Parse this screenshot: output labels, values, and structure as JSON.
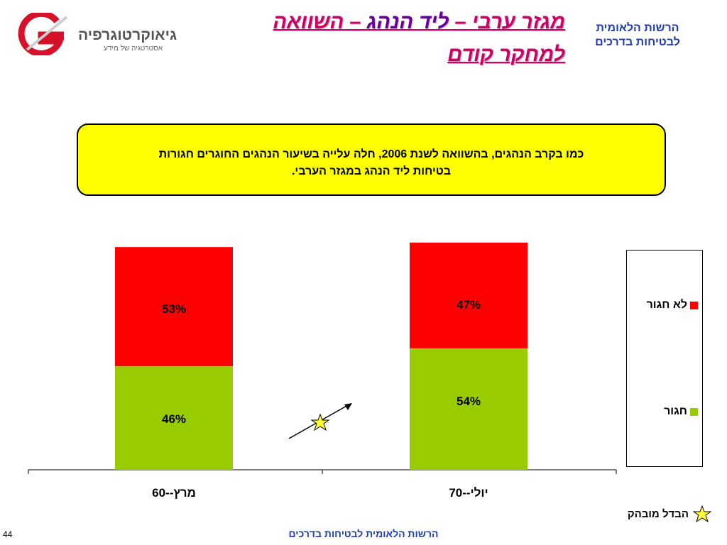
{
  "header": {
    "logo_name": "גיאוקרטוגרפיה",
    "logo_tagline": "אסטרטגיה של מידע",
    "title_part1": "מגזר ערבי – ",
    "title_highlight": "ליד הנהג",
    "title_part2": " – השוואה",
    "title_line2": "למחקר קודם",
    "org_line1": "הרשות הלאומית",
    "org_line2": "לבטיחות בדרכים"
  },
  "note": {
    "line1": "כמו בקרב הנהגים, בהשוואה לשנת 2006, חלה עלייה  בשיעור הנהגים החוגרים חגורות",
    "line2": "בטיחות ליד הנהג במגזר הערבי."
  },
  "chart_data": {
    "type": "bar",
    "stacked": true,
    "categories": [
      "מרץ--60",
      "יולי--70"
    ],
    "series": [
      {
        "name": "חגור",
        "values": [
          46,
          54
        ],
        "labels": [
          "46%",
          "54%"
        ],
        "color": "#99cc00"
      },
      {
        "name": "לא חגור",
        "values": [
          53,
          47
        ],
        "labels": [
          "53%",
          "47%"
        ],
        "color": "#ff0000"
      }
    ],
    "ylim": [
      0,
      100
    ],
    "grid": false,
    "legend": "right",
    "annotation": "significant-increase-star-arrow"
  },
  "legend_note": "הבדל מובהק",
  "footer": "הרשות הלאומית לבטיחות בדרכים",
  "page_number": "44"
}
